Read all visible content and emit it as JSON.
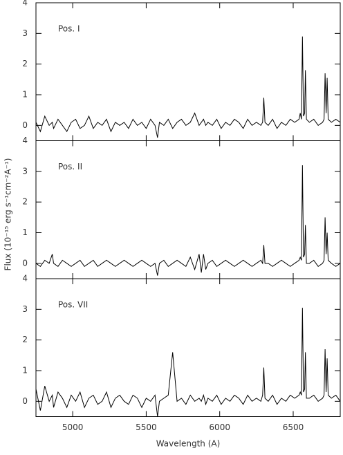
{
  "chart_data": {
    "type": "line",
    "xlabel": "Wavelength (A)",
    "ylabel": "Flux (10⁻¹⁵ erg s⁻¹cm⁻²A⁻¹)",
    "xlim": [
      4750,
      6820
    ],
    "xticks": [
      5000,
      5500,
      6000,
      6500
    ],
    "ylim": [
      -0.5,
      4
    ],
    "yticks": [
      0,
      1,
      2,
      3,
      4
    ],
    "x": [
      4750,
      4780,
      4810,
      4840,
      4861,
      4870,
      4900,
      4930,
      4960,
      4990,
      5020,
      5050,
      5080,
      5110,
      5140,
      5170,
      5200,
      5230,
      5260,
      5290,
      5320,
      5350,
      5380,
      5410,
      5440,
      5470,
      5500,
      5530,
      5560,
      5577,
      5590,
      5620,
      5650,
      5680,
      5710,
      5740,
      5770,
      5800,
      5830,
      5860,
      5875,
      5890,
      5905,
      5920,
      5950,
      5980,
      6010,
      6040,
      6070,
      6100,
      6130,
      6160,
      6190,
      6220,
      6250,
      6280,
      6292,
      6300,
      6308,
      6330,
      6360,
      6390,
      6420,
      6450,
      6480,
      6510,
      6540,
      6548,
      6556,
      6563,
      6570,
      6578,
      6583,
      6590,
      6610,
      6640,
      6670,
      6700,
      6710,
      6717,
      6724,
      6731,
      6738,
      6760,
      6790,
      6820
    ],
    "series": [
      {
        "name": "Pos. I",
        "color": "#000000",
        "values": [
          0.1,
          -0.2,
          0.3,
          0.0,
          0.1,
          -0.1,
          0.2,
          0.0,
          -0.2,
          0.1,
          0.2,
          -0.1,
          0.0,
          0.3,
          -0.1,
          0.1,
          0.0,
          0.2,
          -0.2,
          0.1,
          0.0,
          0.1,
          -0.1,
          0.2,
          0.0,
          0.1,
          -0.1,
          0.2,
          0.0,
          -0.4,
          0.1,
          0.0,
          0.2,
          -0.1,
          0.1,
          0.2,
          0.0,
          0.1,
          0.4,
          0.0,
          0.1,
          0.2,
          0.0,
          0.1,
          0.0,
          0.2,
          -0.1,
          0.1,
          0.0,
          0.2,
          0.1,
          -0.1,
          0.2,
          0.0,
          0.1,
          0.0,
          0.1,
          0.9,
          0.1,
          0.0,
          0.2,
          -0.1,
          0.1,
          0.0,
          0.2,
          0.1,
          0.2,
          0.4,
          0.2,
          2.9,
          0.3,
          0.4,
          1.8,
          0.2,
          0.1,
          0.2,
          0.0,
          0.1,
          0.2,
          1.7,
          0.4,
          1.55,
          0.2,
          0.1,
          0.2,
          0.1
        ]
      },
      {
        "name": "Pos. II",
        "color": "#000000",
        "values": [
          0.0,
          -0.1,
          0.1,
          0.0,
          0.3,
          0.0,
          -0.1,
          0.1,
          0.0,
          -0.1,
          0.0,
          0.1,
          -0.1,
          0.0,
          0.1,
          -0.1,
          0.0,
          0.1,
          0.0,
          -0.1,
          0.0,
          0.1,
          0.0,
          -0.1,
          0.0,
          0.1,
          0.0,
          -0.1,
          0.0,
          -0.4,
          0.0,
          0.1,
          -0.1,
          0.0,
          0.1,
          0.0,
          -0.1,
          0.2,
          -0.2,
          0.3,
          -0.3,
          0.3,
          -0.2,
          0.0,
          0.1,
          -0.1,
          0.0,
          0.1,
          0.0,
          -0.1,
          0.0,
          0.1,
          0.0,
          -0.1,
          0.0,
          0.1,
          0.0,
          0.6,
          0.0,
          0.0,
          -0.1,
          0.0,
          0.1,
          0.0,
          -0.1,
          0.0,
          0.1,
          0.2,
          0.1,
          3.2,
          0.2,
          0.3,
          1.25,
          0.0,
          0.0,
          0.1,
          -0.1,
          0.0,
          0.1,
          1.5,
          0.3,
          1.0,
          0.1,
          0.0,
          -0.1,
          0.0
        ]
      },
      {
        "name": "Pos. VII",
        "color": "#000000",
        "values": [
          0.4,
          -0.3,
          0.5,
          0.0,
          0.2,
          -0.2,
          0.3,
          0.1,
          -0.2,
          0.2,
          0.0,
          0.3,
          -0.2,
          0.1,
          0.2,
          -0.1,
          0.0,
          0.3,
          -0.2,
          0.1,
          0.2,
          0.0,
          -0.1,
          0.2,
          0.1,
          -0.2,
          0.1,
          0.0,
          0.2,
          -0.5,
          0.0,
          0.1,
          0.2,
          1.6,
          0.0,
          0.1,
          -0.1,
          0.2,
          0.0,
          0.1,
          0.0,
          0.2,
          -0.1,
          0.1,
          0.0,
          0.2,
          -0.1,
          0.1,
          0.0,
          0.2,
          0.1,
          -0.1,
          0.2,
          0.0,
          0.1,
          0.0,
          0.2,
          1.1,
          0.1,
          0.0,
          0.2,
          -0.1,
          0.1,
          0.0,
          0.2,
          0.1,
          0.2,
          0.3,
          0.2,
          3.05,
          0.3,
          0.4,
          1.6,
          0.1,
          0.1,
          0.2,
          0.0,
          0.1,
          0.2,
          1.7,
          0.3,
          1.4,
          0.2,
          0.1,
          0.2,
          0.0
        ]
      }
    ]
  }
}
